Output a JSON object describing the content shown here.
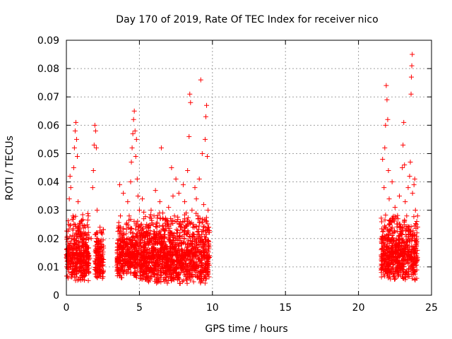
{
  "chart_data": {
    "type": "scatter",
    "title": "Day 170 of 2019, Rate Of TEC Index for receiver nico",
    "xlabel": "GPS time / hours",
    "ylabel": "ROTI / TECUs",
    "xlim": [
      0,
      25
    ],
    "ylim": [
      0,
      0.09
    ],
    "xticks": [
      0,
      5,
      10,
      15,
      20,
      25
    ],
    "yticks": [
      0,
      0.01,
      0.02,
      0.03,
      0.04,
      0.05,
      0.06,
      0.07,
      0.08,
      0.09
    ],
    "xtick_labels": [
      "0",
      "5",
      "10",
      "15",
      "20",
      "25"
    ],
    "ytick_labels": [
      "0",
      "0.01",
      "0.02",
      "0.03",
      "0.04",
      "0.05",
      "0.06",
      "0.07",
      "0.08",
      "0.09"
    ],
    "grid": true,
    "marker": "+",
    "color": "#ff0000",
    "series": [
      {
        "name": "ROTI",
        "points": [
          [
            0.05,
            0.012
          ],
          [
            0.1,
            0.018
          ],
          [
            0.15,
            0.025
          ],
          [
            0.2,
            0.034
          ],
          [
            0.25,
            0.042
          ],
          [
            0.3,
            0.038
          ],
          [
            0.35,
            0.02
          ],
          [
            0.4,
            0.015
          ],
          [
            0.45,
            0.028
          ],
          [
            0.5,
            0.045
          ],
          [
            0.55,
            0.052
          ],
          [
            0.6,
            0.058
          ],
          [
            0.65,
            0.061
          ],
          [
            0.7,
            0.055
          ],
          [
            0.75,
            0.049
          ],
          [
            0.8,
            0.033
          ],
          [
            0.85,
            0.022
          ],
          [
            0.9,
            0.016
          ],
          [
            0.95,
            0.011
          ],
          [
            1.0,
            0.026
          ],
          [
            1.05,
            0.019
          ],
          [
            1.1,
            0.014
          ],
          [
            1.2,
            0.021
          ],
          [
            1.3,
            0.024
          ],
          [
            1.4,
            0.017
          ],
          [
            1.5,
            0.028
          ],
          [
            1.6,
            0.013
          ],
          [
            1.7,
            0.02
          ],
          [
            1.8,
            0.038
          ],
          [
            1.85,
            0.044
          ],
          [
            1.9,
            0.053
          ],
          [
            1.95,
            0.06
          ],
          [
            2.0,
            0.058
          ],
          [
            2.05,
            0.052
          ],
          [
            2.1,
            0.03
          ],
          [
            2.15,
            0.022
          ],
          [
            2.2,
            0.015
          ],
          [
            2.25,
            0.01
          ],
          [
            2.3,
            0.024
          ],
          [
            2.35,
            0.018
          ],
          [
            3.6,
            0.016
          ],
          [
            3.65,
            0.039
          ],
          [
            3.7,
            0.028
          ],
          [
            3.8,
            0.022
          ],
          [
            3.9,
            0.036
          ],
          [
            4.0,
            0.019
          ],
          [
            4.1,
            0.025
          ],
          [
            4.2,
            0.033
          ],
          [
            4.3,
            0.028
          ],
          [
            4.4,
            0.04
          ],
          [
            4.45,
            0.047
          ],
          [
            4.5,
            0.052
          ],
          [
            4.55,
            0.057
          ],
          [
            4.6,
            0.062
          ],
          [
            4.65,
            0.065
          ],
          [
            4.7,
            0.058
          ],
          [
            4.75,
            0.049
          ],
          [
            4.8,
            0.055
          ],
          [
            4.85,
            0.041
          ],
          [
            4.9,
            0.035
          ],
          [
            5.0,
            0.03
          ],
          [
            5.1,
            0.021
          ],
          [
            5.2,
            0.034
          ],
          [
            5.3,
            0.027
          ],
          [
            5.4,
            0.018
          ],
          [
            5.5,
            0.025
          ],
          [
            5.6,
            0.022
          ],
          [
            5.7,
            0.019
          ],
          [
            5.8,
            0.03
          ],
          [
            5.9,
            0.015
          ],
          [
            6.0,
            0.028
          ],
          [
            6.1,
            0.037
          ],
          [
            6.2,
            0.024
          ],
          [
            6.3,
            0.02
          ],
          [
            6.4,
            0.033
          ],
          [
            6.5,
            0.052
          ],
          [
            6.6,
            0.029
          ],
          [
            6.7,
            0.023
          ],
          [
            6.8,
            0.017
          ],
          [
            6.9,
            0.026
          ],
          [
            7.0,
            0.031
          ],
          [
            7.1,
            0.021
          ],
          [
            7.2,
            0.045
          ],
          [
            7.3,
            0.035
          ],
          [
            7.4,
            0.028
          ],
          [
            7.5,
            0.041
          ],
          [
            7.6,
            0.022
          ],
          [
            7.7,
            0.036
          ],
          [
            7.8,
            0.026
          ],
          [
            7.9,
            0.018
          ],
          [
            8.0,
            0.039
          ],
          [
            8.1,
            0.033
          ],
          [
            8.2,
            0.029
          ],
          [
            8.3,
            0.044
          ],
          [
            8.4,
            0.056
          ],
          [
            8.45,
            0.071
          ],
          [
            8.5,
            0.068
          ],
          [
            8.6,
            0.03
          ],
          [
            8.7,
            0.025
          ],
          [
            8.8,
            0.038
          ],
          [
            8.9,
            0.034
          ],
          [
            9.0,
            0.028
          ],
          [
            9.1,
            0.041
          ],
          [
            9.2,
            0.076
          ],
          [
            9.3,
            0.05
          ],
          [
            9.4,
            0.032
          ],
          [
            9.5,
            0.055
          ],
          [
            9.55,
            0.063
          ],
          [
            9.6,
            0.067
          ],
          [
            9.65,
            0.049
          ],
          [
            9.7,
            0.03
          ],
          [
            9.75,
            0.024
          ],
          [
            21.65,
            0.048
          ],
          [
            21.7,
            0.02
          ],
          [
            21.75,
            0.038
          ],
          [
            21.8,
            0.052
          ],
          [
            21.85,
            0.06
          ],
          [
            21.9,
            0.074
          ],
          [
            21.95,
            0.069
          ],
          [
            22.0,
            0.062
          ],
          [
            22.05,
            0.044
          ],
          [
            22.1,
            0.034
          ],
          [
            22.2,
            0.026
          ],
          [
            22.3,
            0.04
          ],
          [
            22.4,
            0.022
          ],
          [
            22.5,
            0.031
          ],
          [
            22.6,
            0.018
          ],
          [
            22.7,
            0.027
          ],
          [
            22.8,
            0.035
          ],
          [
            22.9,
            0.024
          ],
          [
            23.0,
            0.045
          ],
          [
            23.05,
            0.053
          ],
          [
            23.1,
            0.061
          ],
          [
            23.15,
            0.046
          ],
          [
            23.2,
            0.033
          ],
          [
            23.3,
            0.028
          ],
          [
            23.4,
            0.038
          ],
          [
            23.5,
            0.042
          ],
          [
            23.55,
            0.047
          ],
          [
            23.6,
            0.071
          ],
          [
            23.62,
            0.077
          ],
          [
            23.65,
            0.081
          ],
          [
            23.68,
            0.085
          ],
          [
            23.7,
            0.036
          ],
          [
            23.8,
            0.039
          ],
          [
            23.85,
            0.041
          ],
          [
            23.9,
            0.03
          ],
          [
            23.95,
            0.025
          ],
          [
            24.0,
            0.022
          ]
        ]
      }
    ],
    "dense_segments": [
      {
        "x0": 0.0,
        "x1": 1.55,
        "ymin": 0.005,
        "ymax": 0.03
      },
      {
        "x0": 1.95,
        "x1": 2.55,
        "ymin": 0.005,
        "ymax": 0.025
      },
      {
        "x0": 3.45,
        "x1": 4.95,
        "ymin": 0.006,
        "ymax": 0.028
      },
      {
        "x0": 5.0,
        "x1": 9.8,
        "ymin": 0.004,
        "ymax": 0.03
      },
      {
        "x0": 21.55,
        "x1": 24.05,
        "ymin": 0.005,
        "ymax": 0.03
      }
    ]
  }
}
